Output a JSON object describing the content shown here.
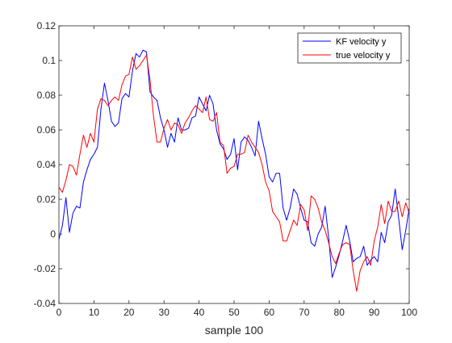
{
  "figure": {
    "background": "#ffffff",
    "axis_color": "#262626"
  },
  "chart_data": {
    "type": "line",
    "title": "",
    "xlabel": "sample 100",
    "ylabel": "",
    "xlim": [
      0,
      100
    ],
    "ylim": [
      -0.04,
      0.12
    ],
    "x_ticks": [
      0,
      10,
      20,
      30,
      40,
      50,
      60,
      70,
      80,
      90,
      100
    ],
    "x_tick_labels": [
      "0",
      "10",
      "20",
      "30",
      "40",
      "50",
      "60",
      "70",
      "80",
      "90",
      "100"
    ],
    "y_ticks": [
      -0.04,
      -0.02,
      0,
      0.02,
      0.04,
      0.06,
      0.08,
      0.1,
      0.12
    ],
    "y_tick_labels": [
      "-0.04",
      "-0.02",
      "0",
      "0.02",
      "0.04",
      "0.06",
      "0.08",
      "0.1",
      "0.12"
    ],
    "grid": false,
    "box": true,
    "legend_position": "top-right",
    "x": [
      0,
      1,
      2,
      3,
      4,
      5,
      6,
      7,
      8,
      9,
      10,
      11,
      12,
      13,
      14,
      15,
      16,
      17,
      18,
      19,
      20,
      21,
      22,
      23,
      24,
      25,
      26,
      27,
      28,
      29,
      30,
      31,
      32,
      33,
      34,
      35,
      36,
      37,
      38,
      39,
      40,
      41,
      42,
      43,
      44,
      45,
      46,
      47,
      48,
      49,
      50,
      51,
      52,
      53,
      54,
      55,
      56,
      57,
      58,
      59,
      60,
      61,
      62,
      63,
      64,
      65,
      66,
      67,
      68,
      69,
      70,
      71,
      72,
      73,
      74,
      75,
      76,
      77,
      78,
      79,
      80,
      81,
      82,
      83,
      84,
      85,
      86,
      87,
      88,
      89,
      90,
      91,
      92,
      93,
      94,
      95,
      96,
      97,
      98,
      99,
      100
    ],
    "series": [
      {
        "name": "KF velocity y",
        "color": "#0000ff",
        "values": [
          -0.003,
          0.005,
          0.021,
          0.001,
          0.012,
          0.016,
          0.015,
          0.03,
          0.037,
          0.043,
          0.046,
          0.05,
          0.072,
          0.087,
          0.077,
          0.065,
          0.062,
          0.064,
          0.078,
          0.081,
          0.079,
          0.094,
          0.104,
          0.102,
          0.106,
          0.105,
          0.082,
          0.079,
          0.077,
          0.067,
          0.06,
          0.05,
          0.058,
          0.053,
          0.067,
          0.06,
          0.06,
          0.061,
          0.067,
          0.068,
          0.079,
          0.075,
          0.071,
          0.08,
          0.075,
          0.06,
          0.052,
          0.049,
          0.043,
          0.046,
          0.055,
          0.037,
          0.053,
          0.056,
          0.054,
          0.05,
          0.045,
          0.065,
          0.055,
          0.046,
          0.033,
          0.03,
          0.035,
          0.035,
          0.015,
          0.008,
          0.015,
          0.026,
          0.023,
          0.015,
          0.008,
          0.007,
          -0.005,
          -0.007,
          0.0,
          0.004,
          0.016,
          -0.002,
          -0.025,
          -0.019,
          -0.012,
          -0.004,
          0.005,
          -0.004,
          -0.016,
          -0.014,
          -0.013,
          -0.007,
          -0.018,
          -0.015,
          -0.013,
          -0.016,
          0.001,
          -0.005,
          0.007,
          0.011,
          0.026,
          0.009,
          -0.009,
          0.002,
          0.015
        ]
      },
      {
        "name": "true velocity y",
        "color": "#ff0000",
        "values": [
          0.027,
          0.024,
          0.031,
          0.04,
          0.039,
          0.034,
          0.046,
          0.057,
          0.05,
          0.058,
          0.053,
          0.072,
          0.078,
          0.077,
          0.074,
          0.077,
          0.079,
          0.077,
          0.086,
          0.091,
          0.092,
          0.102,
          0.095,
          0.097,
          0.1,
          0.103,
          0.089,
          0.068,
          0.053,
          0.053,
          0.061,
          0.066,
          0.06,
          0.064,
          0.063,
          0.058,
          0.064,
          0.067,
          0.071,
          0.074,
          0.072,
          0.07,
          0.079,
          0.066,
          0.065,
          0.07,
          0.053,
          0.051,
          0.035,
          0.038,
          0.039,
          0.046,
          0.046,
          0.047,
          0.057,
          0.053,
          0.05,
          0.047,
          0.04,
          0.03,
          0.025,
          0.013,
          0.01,
          0.007,
          -0.004,
          -0.004,
          0.002,
          0.008,
          0.005,
          0.017,
          0.014,
          0.002,
          0.022,
          0.02,
          0.015,
          0.007,
          0.002,
          -0.005,
          -0.013,
          -0.017,
          -0.011,
          -0.006,
          -0.005,
          -0.006,
          -0.021,
          -0.033,
          -0.021,
          -0.016,
          -0.013,
          -0.018,
          -0.004,
          0.004,
          0.017,
          0.006,
          0.019,
          0.013,
          0.013,
          0.019,
          0.01,
          0.018,
          0.012
        ]
      }
    ]
  }
}
